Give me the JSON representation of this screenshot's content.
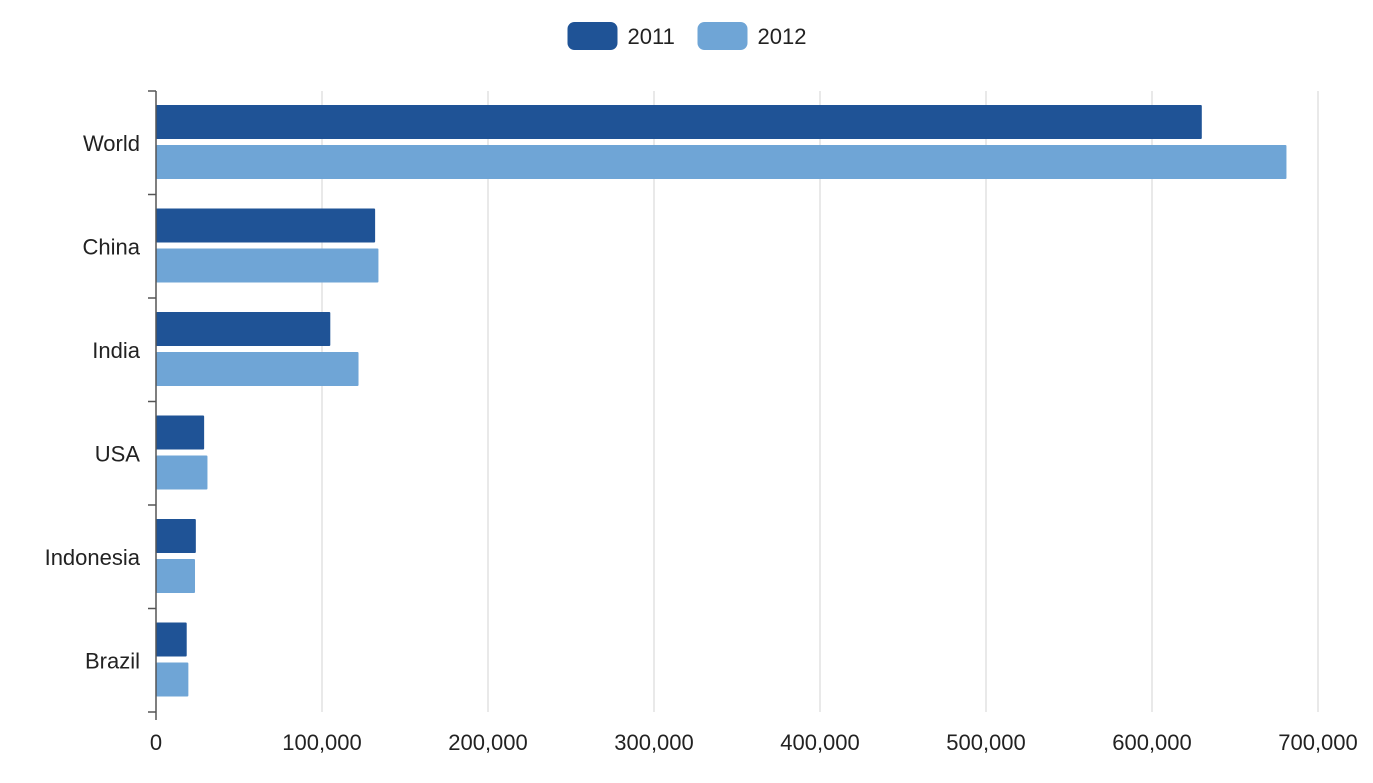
{
  "chart_data": {
    "type": "bar",
    "orientation": "horizontal",
    "title": "",
    "xlabel": "",
    "ylabel": "",
    "categories": [
      "World",
      "China",
      "India",
      "USA",
      "Indonesia",
      "Brazil"
    ],
    "series": [
      {
        "name": "2011",
        "color": "#1f5396",
        "values": [
          630000,
          132000,
          105000,
          29000,
          24000,
          18500
        ]
      },
      {
        "name": "2012",
        "color": "#6fa5d6",
        "values": [
          681000,
          134000,
          122000,
          31000,
          23500,
          19500
        ]
      }
    ],
    "xlim": [
      0,
      700000
    ],
    "xticks": [
      0,
      100000,
      200000,
      300000,
      400000,
      500000,
      600000,
      700000
    ],
    "xtick_labels": [
      "0",
      "100,000",
      "200,000",
      "300,000",
      "400,000",
      "500,000",
      "600,000",
      "700,000"
    ],
    "grid": "vertical",
    "legend_position": "top-center"
  }
}
